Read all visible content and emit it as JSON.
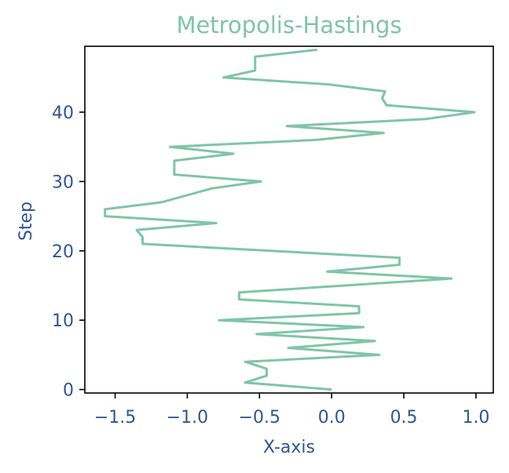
{
  "colors": {
    "line": "#7fc4a9",
    "title": "#7fc4a9",
    "text": "#2e5597",
    "frame": "#000000",
    "background": "#ffffff"
  },
  "chart_data": {
    "type": "line",
    "title": "Metropolis-Hastings",
    "xlabel": "X-axis",
    "ylabel": "Step",
    "xlim": [
      -1.71,
      1.12
    ],
    "ylim": [
      -0.5,
      49.5
    ],
    "xticks": [
      -1.5,
      -1.0,
      -0.5,
      0.0,
      0.5,
      1.0
    ],
    "xtick_labels": [
      "−1.5",
      "−1.0",
      "−0.5",
      "0.0",
      "0.5",
      "1.0"
    ],
    "yticks": [
      0,
      10,
      20,
      30,
      40
    ],
    "ytick_labels": [
      "0",
      "10",
      "20",
      "30",
      "40"
    ],
    "grid": false,
    "legend": "none",
    "series": [
      {
        "x": [
          0.0,
          -0.6,
          -0.45,
          -0.45,
          -0.6,
          0.33,
          -0.3,
          0.3,
          -0.52,
          0.22,
          -0.78,
          0.19,
          0.19,
          -0.64,
          -0.64,
          0.83,
          -0.03,
          0.47,
          0.47,
          -1.31,
          -1.31,
          -1.35,
          -0.8,
          -1.57,
          -1.57,
          -1.18,
          -0.83,
          -0.49,
          -1.09,
          -1.09,
          -1.09,
          -0.68,
          -1.12,
          -0.1,
          0.36,
          -0.31,
          0.65,
          0.99,
          0.38,
          0.35,
          0.37,
          -0.02,
          -0.75,
          -0.53,
          -0.53,
          -0.53,
          -0.1
        ],
        "y": [
          0,
          1,
          2,
          3,
          4,
          5,
          6,
          7,
          8,
          9,
          10,
          11,
          12,
          13,
          14,
          16,
          17,
          18,
          19,
          21,
          22,
          23,
          24,
          25,
          26,
          27,
          29,
          30,
          31,
          32,
          33,
          34,
          35,
          36,
          37,
          38,
          39,
          40,
          41,
          42,
          43,
          44,
          45,
          46,
          47,
          48,
          49
        ]
      }
    ]
  }
}
